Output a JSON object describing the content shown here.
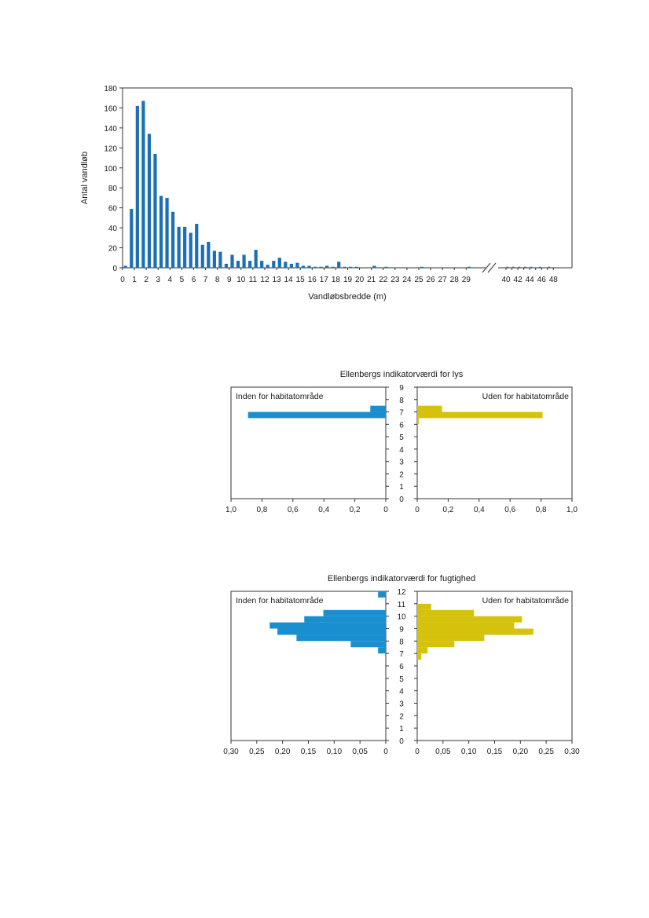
{
  "chart_data": [
    {
      "type": "bar",
      "title": "",
      "xlabel": "Vandløbsbredde (m)",
      "ylabel": "Antal vandløb",
      "ylim": [
        0,
        180
      ],
      "yticks": [
        "0",
        "20",
        "40",
        "60",
        "80",
        "100",
        "120",
        "140",
        "160",
        "180"
      ],
      "xticks_left": [
        "0",
        "1",
        "2",
        "3",
        "4",
        "5",
        "6",
        "7",
        "8",
        "9",
        "10",
        "11",
        "12",
        "13",
        "14",
        "15",
        "16",
        "17",
        "18",
        "19",
        "20",
        "21",
        "22",
        "23",
        "24",
        "25",
        "26",
        "27",
        "28",
        "29"
      ],
      "xticks_right": [
        "40",
        "42",
        "44",
        "46",
        "48"
      ],
      "axis_break": true,
      "color": "#1b6fb4",
      "x": [
        0.25,
        0.75,
        1.25,
        1.75,
        2.25,
        2.75,
        3.25,
        3.75,
        4.25,
        4.75,
        5.25,
        5.75,
        6.25,
        6.75,
        7.25,
        7.75,
        8.25,
        8.75,
        9.25,
        9.75,
        10.25,
        10.75,
        11.25,
        11.75,
        12.25,
        12.75,
        13.25,
        13.75,
        14.25,
        14.75,
        15.25,
        15.75,
        16.25,
        16.75,
        17.25,
        17.75,
        18.25,
        18.75,
        19.25,
        19.75,
        20.25,
        20.75,
        21.25,
        21.75,
        22.25,
        22.75,
        23.25,
        23.75,
        24.25,
        24.75,
        25.25,
        25.75,
        26.25,
        26.75,
        27.25,
        27.75,
        28.25,
        28.75,
        29.25,
        40.25,
        40.75,
        41.25,
        41.75,
        42.25,
        42.75,
        43.25,
        43.75,
        44.25,
        44.75,
        45.25,
        45.75,
        46.25,
        46.75,
        47.25,
        47.75
      ],
      "values": [
        2,
        59,
        162,
        167,
        134,
        114,
        72,
        70,
        56,
        41,
        41,
        35,
        44,
        23,
        26,
        17,
        16,
        4,
        13,
        7,
        13,
        7,
        18,
        7,
        3,
        7,
        10,
        6,
        4,
        5,
        2,
        2,
        1,
        1,
        2,
        1,
        6,
        1,
        1,
        1,
        0,
        0,
        2,
        0,
        1,
        0,
        0,
        0,
        0,
        0,
        1,
        0,
        0,
        0,
        0,
        0,
        0,
        0,
        1,
        1,
        0,
        1,
        0,
        1,
        0,
        1,
        0,
        1,
        0,
        0,
        1,
        0,
        0,
        1,
        0
      ]
    },
    {
      "type": "bar",
      "orientation": "horizontal",
      "title": "Ellenbergs indikatorværdi for lys",
      "categories": [
        0,
        1,
        2,
        3,
        4,
        5,
        6,
        7,
        8,
        9
      ],
      "ytick_labels": [
        "0",
        "1",
        "2",
        "3",
        "4",
        "5",
        "6",
        "7",
        "8",
        "9"
      ],
      "xtick_labels_left": [
        "1,0",
        "0,8",
        "0,6",
        "0,4",
        "0,2",
        "0"
      ],
      "xtick_labels_right": [
        "0",
        "0,2",
        "0,4",
        "0,6",
        "0,8",
        "1,0"
      ],
      "xlim": [
        0,
        1.0
      ],
      "series": [
        {
          "name": "Inden for habitatområde",
          "side": "left",
          "color": "#1a8fcf",
          "bins": [
            [
              6.5,
              7.0,
              0.89
            ],
            [
              7.0,
              7.5,
              0.1
            ]
          ]
        },
        {
          "name": "Uden for habitatområde",
          "side": "right",
          "color": "#d4c20c",
          "bins": [
            [
              6.0,
              6.5,
              0.01
            ],
            [
              6.5,
              7.0,
              0.81
            ],
            [
              7.0,
              7.5,
              0.16
            ]
          ]
        }
      ]
    },
    {
      "type": "bar",
      "orientation": "horizontal",
      "title": "Ellenbergs indikatorværdi for fugtighed",
      "categories": [
        0,
        1,
        2,
        3,
        4,
        5,
        6,
        7,
        8,
        9,
        10,
        11,
        12
      ],
      "ytick_labels": [
        "0",
        "1",
        "2",
        "3",
        "4",
        "5",
        "6",
        "7",
        "8",
        "9",
        "10",
        "11",
        "12"
      ],
      "xtick_labels_left": [
        "0,30",
        "0,25",
        "0,20",
        "0,15",
        "0,10",
        "0,05",
        "0"
      ],
      "xtick_labels_right": [
        "0",
        "0,05",
        "0,10",
        "0,15",
        "0,20",
        "0,25",
        "0,30"
      ],
      "xlim": [
        0,
        0.3
      ],
      "series": [
        {
          "name": "Inden for habitatområde",
          "side": "left",
          "color": "#1a8fcf",
          "bins": [
            [
              7.0,
              7.5,
              0.015
            ],
            [
              7.5,
              8.0,
              0.068
            ],
            [
              8.0,
              8.5,
              0.173
            ],
            [
              8.5,
              9.0,
              0.21
            ],
            [
              9.0,
              9.5,
              0.225
            ],
            [
              9.5,
              10.0,
              0.158
            ],
            [
              10.0,
              10.5,
              0.121
            ],
            [
              11.5,
              12.0,
              0.015
            ]
          ]
        },
        {
          "name": "Uden for habitatområde",
          "side": "right",
          "color": "#d4c20c",
          "bins": [
            [
              6.5,
              7.0,
              0.008
            ],
            [
              7.0,
              7.5,
              0.02
            ],
            [
              7.5,
              8.0,
              0.072
            ],
            [
              8.0,
              8.5,
              0.13
            ],
            [
              8.5,
              9.0,
              0.225
            ],
            [
              9.0,
              9.5,
              0.188
            ],
            [
              9.5,
              10.0,
              0.203
            ],
            [
              10.0,
              10.5,
              0.11
            ],
            [
              10.5,
              11.0,
              0.027
            ]
          ]
        }
      ]
    }
  ]
}
